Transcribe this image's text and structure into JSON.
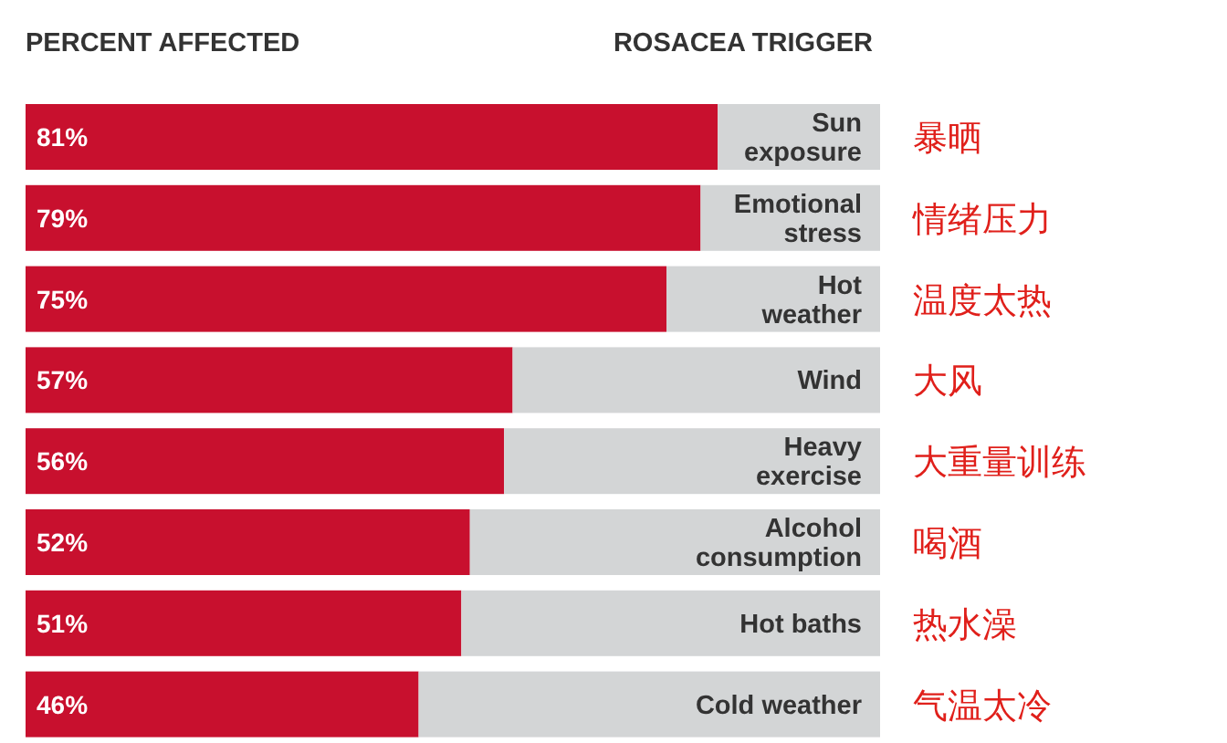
{
  "chart_data": {
    "type": "bar",
    "orientation": "horizontal",
    "stacked": true,
    "xlabel": "PERCENT AFFECTED",
    "ylabel": "ROSACEA TRIGGER",
    "categories": [
      "Sun exposure",
      "Emotional stress",
      "Hot weather",
      "Wind",
      "Heavy exercise",
      "Alcohol consumption",
      "Hot baths",
      "Cold weather"
    ],
    "series": [
      {
        "color": "#c8102e",
        "values": [
          81,
          79,
          75,
          57,
          56,
          52,
          51,
          46
        ],
        "value_labels": [
          "81%",
          "79%",
          "75%",
          "57%",
          "56%",
          "52%",
          "51%",
          "46%"
        ]
      },
      {
        "color": "#d3d5d6",
        "values": [
          19,
          21,
          25,
          43,
          44,
          48,
          49,
          54
        ]
      }
    ],
    "xlim": [
      0,
      100
    ],
    "tick_labels": "y",
    "grid": false,
    "annotations": [
      "暴晒",
      "情绪压力",
      "温度太热",
      "大风",
      "大重量训练",
      "喝酒",
      "热水澡",
      "气温太冷"
    ]
  }
}
